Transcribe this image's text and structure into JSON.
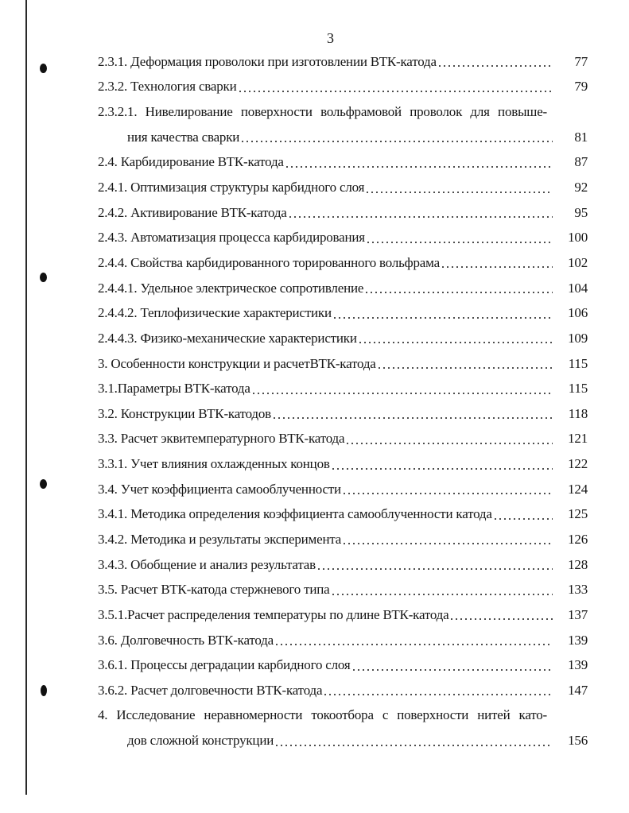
{
  "page_number": "3",
  "entries": [
    {
      "text": "2.3.1. Деформация проволоки при изготовлении ВТК-катода",
      "page": "77"
    },
    {
      "text": "2.3.2. Технология сварки",
      "page": "79"
    },
    {
      "text": "2.3.2.1. Нивелирование поверхности вольфрамовой проволок для повыше-",
      "continuation": "ния качества сварки",
      "page": "81"
    },
    {
      "text": "2.4. Карбидирование ВТК-катода",
      "page": "87"
    },
    {
      "text": "2.4.1. Оптимизация структуры карбидного слоя",
      "page": "92"
    },
    {
      "text": "2.4.2. Активирование ВТК-катода",
      "page": "95"
    },
    {
      "text": "2.4.3. Автоматизация процесса карбидирования",
      "page": "100"
    },
    {
      "text": "2.4.4. Свойства карбидированного торированного вольфрама",
      "page": "102"
    },
    {
      "text": "2.4.4.1. Удельное электрическое сопротивление",
      "page": "104"
    },
    {
      "text": "2.4.4.2. Теплофизические характеристики",
      "page": "106"
    },
    {
      "text": "2.4.4.3. Физико-механические характеристики",
      "page": "109"
    },
    {
      "text": "3. Особенности конструкции и расчетВТК-катода",
      "page": "115"
    },
    {
      "text": "3.1.Параметры ВТК-катода",
      "page": "115"
    },
    {
      "text": "3.2. Конструкции ВТК-катодов",
      "page": "118"
    },
    {
      "text": "3.3. Расчет эквитемпературного ВТК-катода",
      "page": "121"
    },
    {
      "text": "3.3.1. Учет влияния охлажденных концов",
      "page": "122"
    },
    {
      "text": "3.4. Учет коэффициента самооблученности",
      "page": "124"
    },
    {
      "text": "3.4.1. Методика определения коэффициента самооблученности катода",
      "page": "125"
    },
    {
      "text": "3.4.2. Методика и результаты эксперимента",
      "page": "126"
    },
    {
      "text": "3.4.3. Обобщение и анализ результатав",
      "page": "128"
    },
    {
      "text": "3.5. Расчет ВТК-катода стержневого типа",
      "page": "133"
    },
    {
      "text": "3.5.1.Расчет распределения температуры по длине ВТК-катода",
      "page": "137"
    },
    {
      "text": "3.6. Долговечность ВТК-катода",
      "page": "139"
    },
    {
      "text": "3.6.1. Процессы деградации карбидного слоя",
      "page": "139"
    },
    {
      "text": "3.6.2. Расчет долговечности ВТК-катода",
      "page": "147"
    },
    {
      "text": "4. Исследование неравномерности токоотбора с поверхности нитей като-",
      "continuation": "дов сложной конструкции",
      "page": "156"
    }
  ]
}
